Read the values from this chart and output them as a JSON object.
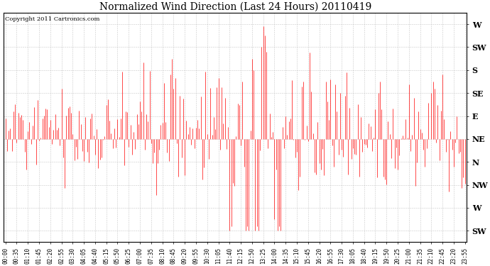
{
  "title": "Normalized Wind Direction (Last 24 Hours) 20110419",
  "copyright_text": "Copyright 2011 Cartronics.com",
  "line_color": "#FF0000",
  "bg_color": "#FFFFFF",
  "plot_bg_color": "#FFFFFF",
  "grid_color": "#BBBBBB",
  "ytick_labels": [
    "SW",
    "W",
    "NW",
    "N",
    "NE",
    "E",
    "SE",
    "S",
    "SW",
    "W"
  ],
  "ytick_values": [
    -2,
    -1,
    0,
    1,
    2,
    3,
    4,
    5,
    6,
    7
  ],
  "ylim": [
    -2.5,
    7.5
  ],
  "ylabel_fontsize": 8,
  "title_fontsize": 10,
  "copyright_fontsize": 6,
  "seed": 42,
  "n_points": 288,
  "figsize": [
    6.9,
    3.75
  ],
  "dpi": 100
}
